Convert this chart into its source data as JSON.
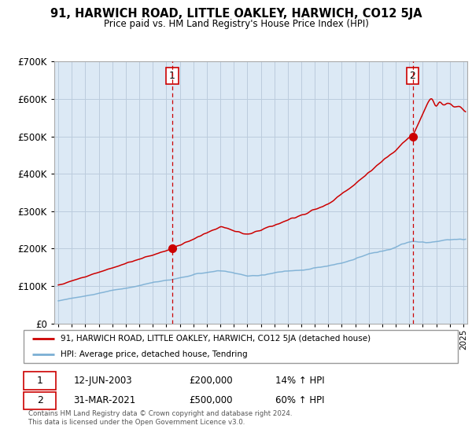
{
  "title": "91, HARWICH ROAD, LITTLE OAKLEY, HARWICH, CO12 5JA",
  "subtitle": "Price paid vs. HM Land Registry's House Price Index (HPI)",
  "ylim": [
    0,
    700000
  ],
  "xlim_start": 1994.7,
  "xlim_end": 2025.3,
  "sale1_date": 2003.44,
  "sale1_price": 200000,
  "sale1_label": "1",
  "sale2_date": 2021.25,
  "sale2_price": 500000,
  "sale2_label": "2",
  "red_line_color": "#cc0000",
  "blue_line_color": "#7bafd4",
  "dashed_line_color": "#cc0000",
  "plot_bg_color": "#dce9f5",
  "legend_label1": "91, HARWICH ROAD, LITTLE OAKLEY, HARWICH, CO12 5JA (detached house)",
  "legend_label2": "HPI: Average price, detached house, Tendring",
  "footnote": "Contains HM Land Registry data © Crown copyright and database right 2024.\nThis data is licensed under the Open Government Licence v3.0.",
  "background_color": "#ffffff",
  "grid_color": "#bbccdd"
}
